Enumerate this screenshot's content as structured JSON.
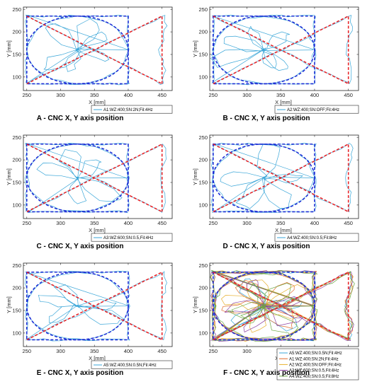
{
  "colors": {
    "reference_blue": "#1f2fd6",
    "reference_red": "#e8262a",
    "trajectory_main": "#3aa6d8",
    "traj_A1": "#e06a2a",
    "traj_A2": "#e8b02e",
    "traj_A3": "#8a3fa0",
    "traj_A4": "#6aa842",
    "axes": "#262626"
  },
  "chart_data": [
    {
      "id": "A",
      "type": "line",
      "caption": "A - CNC X, Y axis position",
      "xlabel": "X [mm]",
      "ylabel": "Y [mm]",
      "xlim": [
        245,
        465
      ],
      "ylim": [
        70,
        255
      ],
      "xticks": [
        250,
        300,
        350,
        400,
        450
      ],
      "yticks": [
        100,
        150,
        200,
        250
      ],
      "legend_position": "bottom-right",
      "series": [
        {
          "name": "A1:WZ:400;SN:2N;Fil:4Hz",
          "color": "trajectory_main"
        }
      ]
    },
    {
      "id": "B",
      "type": "line",
      "caption": "B - CNC X, Y axis position",
      "xlabel": "X [mm]",
      "ylabel": "Y [mm]",
      "xlim": [
        245,
        465
      ],
      "ylim": [
        70,
        255
      ],
      "xticks": [
        250,
        300,
        350,
        400,
        450
      ],
      "yticks": [
        100,
        150,
        200,
        250
      ],
      "legend_position": "bottom-right",
      "series": [
        {
          "name": "A2:WZ:400;SN:OFF;Fil:4Hz",
          "color": "trajectory_main"
        }
      ]
    },
    {
      "id": "C",
      "type": "line",
      "caption": "C - CNC X, Y axis position",
      "xlabel": "X [mm]",
      "ylabel": "Y [mm]",
      "xlim": [
        245,
        465
      ],
      "ylim": [
        70,
        255
      ],
      "xticks": [
        250,
        300,
        350,
        400,
        450
      ],
      "yticks": [
        100,
        150,
        200,
        250
      ],
      "legend_position": "bottom-right",
      "series": [
        {
          "name": "A3:WZ:600;SN:0.5,Fil:4Hz",
          "color": "trajectory_main"
        }
      ]
    },
    {
      "id": "D",
      "type": "line",
      "caption": "D - CNC X, Y axis position",
      "xlabel": "X [mm]",
      "ylabel": "Y [mm]",
      "xlim": [
        245,
        465
      ],
      "ylim": [
        70,
        255
      ],
      "xticks": [
        250,
        300,
        350,
        400,
        450
      ],
      "yticks": [
        100,
        150,
        200,
        250
      ],
      "legend_position": "bottom-right",
      "series": [
        {
          "name": "A4:WZ:400;SN:0.5;Fil:8Hz",
          "color": "trajectory_main"
        }
      ]
    },
    {
      "id": "E",
      "type": "line",
      "caption": "E - CNC X, Y axis position",
      "xlabel": "X [mm]",
      "ylabel": "Y [mm]",
      "xlim": [
        245,
        465
      ],
      "ylim": [
        70,
        255
      ],
      "xticks": [
        250,
        300,
        350,
        400,
        450
      ],
      "yticks": [
        100,
        150,
        200,
        250
      ],
      "legend_position": "bottom-right",
      "series": [
        {
          "name": "A5:WZ:400;SN:0.5N;Fil:4Hz",
          "color": "trajectory_main"
        }
      ]
    },
    {
      "id": "F",
      "type": "line",
      "caption": "F - CNC X, Y axis position",
      "xlabel": "X [mm]",
      "ylabel": "Y [mm]",
      "xlim": [
        245,
        465
      ],
      "ylim": [
        70,
        255
      ],
      "xticks": [
        250,
        300,
        350,
        400,
        450
      ],
      "yticks": [
        100,
        150,
        200,
        250
      ],
      "legend_position": "bottom-right",
      "series": [
        {
          "name": "A5:WZ:400;SN:0.5N;Fil:4Hz",
          "color": "trajectory_main"
        },
        {
          "name": "A1:WZ:400;SN:2N;Fil:4Hz",
          "color": "traj_A1"
        },
        {
          "name": "A2:WZ:400;SN:OFF;Fil:4Hz",
          "color": "traj_A2"
        },
        {
          "name": "A3:WZ:600;SN:0.5,Fil:4Hz",
          "color": "traj_A3"
        },
        {
          "name": "A4:WZ:400;SN:0.5;Fil:8Hz",
          "color": "traj_A4"
        }
      ]
    }
  ],
  "reference_path": {
    "rectangle": {
      "x": [
        250,
        400
      ],
      "y": [
        85,
        235
      ]
    },
    "circle": {
      "cx": 325,
      "cy": 160,
      "rx": 75,
      "ry": 75
    },
    "diagonals": [
      {
        "x": [
          250,
          450
        ],
        "y": [
          235,
          85
        ]
      },
      {
        "x": [
          250,
          450
        ],
        "y": [
          85,
          235
        ]
      },
      {
        "x": [
          450,
          450
        ],
        "y": [
          85,
          235
        ]
      }
    ]
  }
}
